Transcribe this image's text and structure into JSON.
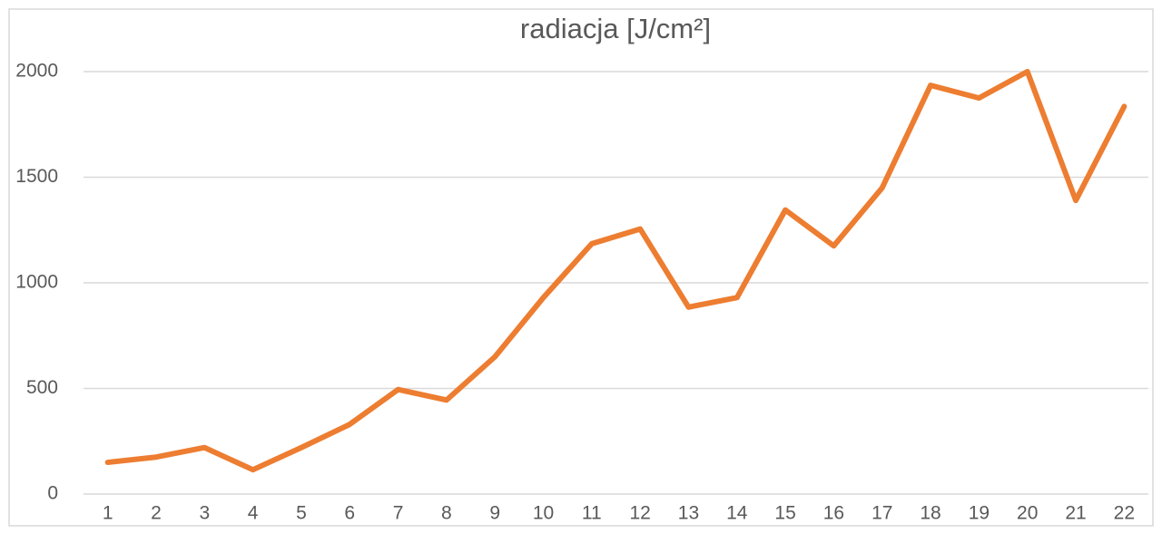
{
  "chart_data": {
    "type": "line",
    "title": "radiacja [J/cm²]",
    "categories": [
      1,
      2,
      3,
      4,
      5,
      6,
      7,
      8,
      9,
      10,
      11,
      12,
      13,
      14,
      15,
      16,
      17,
      18,
      19,
      20,
      21,
      22
    ],
    "values": [
      150,
      175,
      220,
      115,
      220,
      330,
      495,
      445,
      650,
      930,
      1185,
      1255,
      885,
      930,
      1345,
      1175,
      1450,
      1935,
      1875,
      2000,
      1390,
      1835
    ],
    "color": "#ed7d31",
    "ylim": [
      0,
      2000
    ],
    "yticks": [
      0,
      500,
      1000,
      1500,
      2000
    ],
    "grid": true
  }
}
